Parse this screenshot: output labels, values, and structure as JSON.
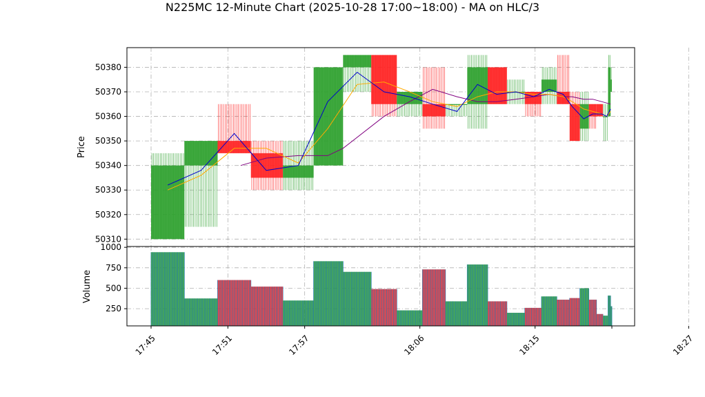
{
  "chart_data": {
    "type": "candlestick",
    "title": "N225MC 12-Minute Chart (2025-10-28 17:00~18:00) - MA on HLC/3",
    "colors": {
      "up": "#2ca02c",
      "down": "#ff2020",
      "ma_short": "#0000cc",
      "ma_mid": "#ffaa00",
      "ma_long": "#800080",
      "volume_bar": "#1f77b4",
      "grid": "#b0b0b0"
    },
    "price_panel": {
      "ylabel": "Price",
      "ylim": [
        50307,
        50388
      ],
      "yticks": [
        50310,
        50320,
        50330,
        50340,
        50350,
        50360,
        50370,
        50380
      ],
      "grid": true
    },
    "volume_panel": {
      "ylabel": "Volume",
      "ylim": [
        40,
        1010
      ],
      "yticks": [
        250,
        500,
        750,
        1000
      ],
      "grid": true
    },
    "x_axis": {
      "ticks": [
        {
          "t": 0,
          "label": "17:45"
        },
        {
          "t": 6,
          "label": "17:51"
        },
        {
          "t": 12,
          "label": "17:57"
        },
        {
          "t": 21,
          "label": "18:06"
        },
        {
          "t": 30,
          "label": "18:15"
        },
        {
          "t": 42,
          "label": "18:27"
        }
      ]
    },
    "candles": [
      {
        "t": 0,
        "w": 2.6,
        "open": 50310,
        "high": 50345,
        "low": 50310,
        "close": 50340,
        "volume": 940
      },
      {
        "t": 2.6,
        "w": 2.6,
        "open": 50340,
        "high": 50350,
        "low": 50315,
        "close": 50350,
        "volume": 375
      },
      {
        "t": 5.2,
        "w": 2.6,
        "open": 50350,
        "high": 50365,
        "low": 50345,
        "close": 50345,
        "volume": 600
      },
      {
        "t": 7.8,
        "w": 2.5,
        "open": 50345,
        "high": 50350,
        "low": 50330,
        "close": 50335,
        "volume": 520
      },
      {
        "t": 10.3,
        "w": 2.4,
        "open": 50335,
        "high": 50350,
        "low": 50330,
        "close": 50340,
        "volume": 350
      },
      {
        "t": 12.7,
        "w": 2.3,
        "open": 50340,
        "high": 50380,
        "low": 50340,
        "close": 50380,
        "volume": 830
      },
      {
        "t": 15.0,
        "w": 2.2,
        "open": 50380,
        "high": 50385,
        "low": 50370,
        "close": 50385,
        "volume": 700
      },
      {
        "t": 17.2,
        "w": 2.0,
        "open": 50385,
        "high": 50385,
        "low": 50360,
        "close": 50365,
        "volume": 490
      },
      {
        "t": 19.2,
        "w": 2.0,
        "open": 50365,
        "high": 50370,
        "low": 50360,
        "close": 50370,
        "volume": 230
      },
      {
        "t": 21.2,
        "w": 1.8,
        "open": 50365,
        "high": 50380,
        "low": 50355,
        "close": 50360,
        "volume": 730
      },
      {
        "t": 23.0,
        "w": 1.7,
        "open": 50365,
        "high": 50365,
        "low": 50360,
        "close": 50365,
        "volume": 340
      },
      {
        "t": 24.7,
        "w": 1.6,
        "open": 50365,
        "high": 50385,
        "low": 50355,
        "close": 50380,
        "volume": 790
      },
      {
        "t": 26.3,
        "w": 1.5,
        "open": 50380,
        "high": 50380,
        "low": 50365,
        "close": 50365,
        "volume": 340
      },
      {
        "t": 27.8,
        "w": 1.4,
        "open": 50370,
        "high": 50375,
        "low": 50365,
        "close": 50370,
        "volume": 200
      },
      {
        "t": 29.2,
        "w": 1.3,
        "open": 50370,
        "high": 50370,
        "low": 50360,
        "close": 50365,
        "volume": 260
      },
      {
        "t": 30.5,
        "w": 1.2,
        "open": 50370,
        "high": 50380,
        "low": 50365,
        "close": 50375,
        "volume": 400
      },
      {
        "t": 31.7,
        "w": 1.0,
        "open": 50370,
        "high": 50385,
        "low": 50365,
        "close": 50365,
        "volume": 360
      },
      {
        "t": 32.7,
        "w": 0.8,
        "open": 50365,
        "high": 50370,
        "low": 50350,
        "close": 50350,
        "volume": 380
      },
      {
        "t": 33.5,
        "w": 0.7,
        "open": 50355,
        "high": 50370,
        "low": 50350,
        "close": 50365,
        "volume": 500
      },
      {
        "t": 34.2,
        "w": 0.6,
        "open": 50365,
        "high": 50365,
        "low": 50355,
        "close": 50360,
        "volume": 360
      },
      {
        "t": 34.8,
        "w": 0.5,
        "open": 50365,
        "high": 50365,
        "low": 50360,
        "close": 50360,
        "volume": 185
      },
      {
        "t": 35.3,
        "w": 0.4,
        "open": 50360,
        "high": 50365,
        "low": 50350,
        "close": 50360,
        "volume": 165
      },
      {
        "t": 35.7,
        "w": 0.2,
        "open": 50360,
        "high": 50385,
        "low": 50360,
        "close": 50380,
        "volume": 410
      },
      {
        "t": 35.9,
        "w": 0.1,
        "open": 50370,
        "high": 50380,
        "low": 50370,
        "close": 50375,
        "volume": 280
      }
    ],
    "ma_short": [
      [
        1.3,
        50332
      ],
      [
        3.9,
        50338
      ],
      [
        6.5,
        50353
      ],
      [
        9.0,
        50338
      ],
      [
        11.5,
        50340
      ],
      [
        13.8,
        50366
      ],
      [
        16.1,
        50378
      ],
      [
        18.2,
        50370
      ],
      [
        20.2,
        50368
      ],
      [
        22.0,
        50365
      ],
      [
        23.9,
        50362
      ],
      [
        25.5,
        50373
      ],
      [
        27.0,
        50369
      ],
      [
        28.5,
        50370
      ],
      [
        29.9,
        50368
      ],
      [
        31.1,
        50371
      ],
      [
        32.2,
        50369
      ],
      [
        32.9,
        50364
      ],
      [
        33.8,
        50359
      ],
      [
        34.5,
        50361
      ],
      [
        35.2,
        50361
      ],
      [
        35.6,
        50360
      ],
      [
        35.9,
        50363
      ]
    ],
    "ma_mid": [
      [
        1.3,
        50330
      ],
      [
        3.9,
        50336
      ],
      [
        6.5,
        50347
      ],
      [
        9.0,
        50347
      ],
      [
        11.5,
        50341
      ],
      [
        13.8,
        50355
      ],
      [
        16.1,
        50373
      ],
      [
        18.2,
        50374
      ],
      [
        20.2,
        50370
      ],
      [
        22.0,
        50366
      ],
      [
        23.9,
        50364
      ],
      [
        25.5,
        50368
      ],
      [
        27.0,
        50370
      ],
      [
        28.5,
        50370
      ],
      [
        29.9,
        50369
      ],
      [
        31.1,
        50369
      ],
      [
        32.2,
        50368
      ],
      [
        32.9,
        50366
      ],
      [
        33.8,
        50363
      ],
      [
        34.5,
        50362
      ],
      [
        35.2,
        50361
      ],
      [
        35.6,
        50360
      ],
      [
        35.9,
        50362
      ]
    ],
    "ma_long": [
      [
        7.0,
        50340
      ],
      [
        9.0,
        50343
      ],
      [
        11.5,
        50344
      ],
      [
        13.8,
        50344
      ],
      [
        15.0,
        50347
      ],
      [
        18.2,
        50360
      ],
      [
        20.2,
        50366
      ],
      [
        22.0,
        50371
      ],
      [
        23.9,
        50368
      ],
      [
        25.5,
        50366
      ],
      [
        27.0,
        50366
      ],
      [
        28.5,
        50367
      ],
      [
        29.9,
        50368
      ],
      [
        31.1,
        50369
      ],
      [
        32.2,
        50368
      ],
      [
        32.9,
        50368
      ],
      [
        33.8,
        50367
      ],
      [
        34.5,
        50367
      ],
      [
        35.2,
        50366
      ],
      [
        35.9,
        50365
      ]
    ]
  }
}
